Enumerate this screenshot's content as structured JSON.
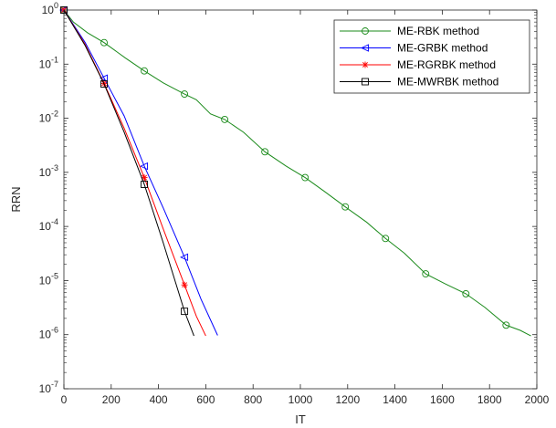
{
  "chart_data": {
    "type": "line",
    "xlabel": "IT",
    "ylabel": "RRN",
    "xlim": [
      0,
      2000
    ],
    "ylim_log10": [
      -7,
      0
    ],
    "y_scale": "log",
    "grid": false,
    "legend_position": "top-right",
    "x_ticks": [
      {
        "value": 0,
        "label": "0"
      },
      {
        "value": 200,
        "label": "200"
      },
      {
        "value": 400,
        "label": "400"
      },
      {
        "value": 600,
        "label": "600"
      },
      {
        "value": 800,
        "label": "800"
      },
      {
        "value": 1000,
        "label": "1000"
      },
      {
        "value": 1200,
        "label": "1200"
      },
      {
        "value": 1400,
        "label": "1400"
      },
      {
        "value": 1600,
        "label": "1600"
      },
      {
        "value": 1800,
        "label": "1800"
      },
      {
        "value": 2000,
        "label": "2000"
      }
    ],
    "y_ticks": [
      {
        "exp": 0,
        "base": "10",
        "power": "0"
      },
      {
        "exp": -1,
        "base": "10",
        "power": "-1"
      },
      {
        "exp": -2,
        "base": "10",
        "power": "-2"
      },
      {
        "exp": -3,
        "base": "10",
        "power": "-3"
      },
      {
        "exp": -4,
        "base": "10",
        "power": "-4"
      },
      {
        "exp": -5,
        "base": "10",
        "power": "-5"
      },
      {
        "exp": -6,
        "base": "10",
        "power": "-6"
      },
      {
        "exp": -7,
        "base": "10",
        "power": "-7"
      }
    ],
    "series": [
      {
        "name": "ME-RBK method",
        "color": "#1a8a1a",
        "marker": "circle",
        "points": [
          [
            0,
            1
          ],
          [
            40,
            0.6
          ],
          [
            100,
            0.38
          ],
          [
            170,
            0.25
          ],
          [
            260,
            0.13
          ],
          [
            340,
            0.075
          ],
          [
            420,
            0.045
          ],
          [
            510,
            0.028
          ],
          [
            560,
            0.022
          ],
          [
            620,
            0.012
          ],
          [
            680,
            0.0095
          ],
          [
            760,
            0.0055
          ],
          [
            850,
            0.0024
          ],
          [
            940,
            0.0013
          ],
          [
            1020,
            0.0008
          ],
          [
            1100,
            0.00045
          ],
          [
            1190,
            0.00023
          ],
          [
            1280,
            0.00012
          ],
          [
            1360,
            6e-05
          ],
          [
            1440,
            3.2e-05
          ],
          [
            1530,
            1.33e-05
          ],
          [
            1610,
            8.8e-06
          ],
          [
            1700,
            5.7e-06
          ],
          [
            1780,
            3.2e-06
          ],
          [
            1870,
            1.5e-06
          ],
          [
            1930,
            1.2e-06
          ],
          [
            1975,
            9.5e-07
          ]
        ],
        "marker_points": [
          [
            0,
            1
          ],
          [
            170,
            0.25
          ],
          [
            340,
            0.075
          ],
          [
            510,
            0.028
          ],
          [
            680,
            0.0095
          ],
          [
            850,
            0.0024
          ],
          [
            1020,
            0.0008
          ],
          [
            1190,
            0.00023
          ],
          [
            1360,
            6e-05
          ],
          [
            1530,
            1.33e-05
          ],
          [
            1700,
            5.7e-06
          ],
          [
            1870,
            1.5e-06
          ]
        ]
      },
      {
        "name": "ME-GRBK method",
        "color": "#0000ff",
        "marker": "triangle-left",
        "points": [
          [
            0,
            1
          ],
          [
            90,
            0.25
          ],
          [
            170,
            0.055
          ],
          [
            255,
            0.011
          ],
          [
            340,
            0.0013
          ],
          [
            420,
            0.00022
          ],
          [
            510,
            2.7e-05
          ],
          [
            580,
            4.5e-06
          ],
          [
            650,
            9.7e-07
          ]
        ],
        "marker_points": [
          [
            0,
            1
          ],
          [
            170,
            0.055
          ],
          [
            340,
            0.0013
          ],
          [
            510,
            2.7e-05
          ]
        ]
      },
      {
        "name": "ME-RGRBK method",
        "color": "#ff0000",
        "marker": "asterisk",
        "points": [
          [
            0,
            1
          ],
          [
            90,
            0.23
          ],
          [
            170,
            0.044
          ],
          [
            255,
            0.0065
          ],
          [
            340,
            0.0008
          ],
          [
            420,
            9e-05
          ],
          [
            510,
            8.3e-06
          ],
          [
            560,
            2.2e-06
          ],
          [
            600,
            9.5e-07
          ]
        ],
        "marker_points": [
          [
            0,
            1
          ],
          [
            170,
            0.044
          ],
          [
            340,
            0.0008
          ],
          [
            510,
            8.3e-06
          ]
        ]
      },
      {
        "name": "ME-MWRBK method",
        "color": "#000000",
        "marker": "square",
        "points": [
          [
            0,
            1
          ],
          [
            90,
            0.22
          ],
          [
            170,
            0.043
          ],
          [
            255,
            0.0055
          ],
          [
            340,
            0.0006
          ],
          [
            420,
            5e-05
          ],
          [
            510,
            2.7e-06
          ],
          [
            550,
            9.5e-07
          ]
        ],
        "marker_points": [
          [
            0,
            1
          ],
          [
            170,
            0.043
          ],
          [
            340,
            0.0006
          ],
          [
            510,
            2.7e-06
          ]
        ]
      }
    ]
  }
}
